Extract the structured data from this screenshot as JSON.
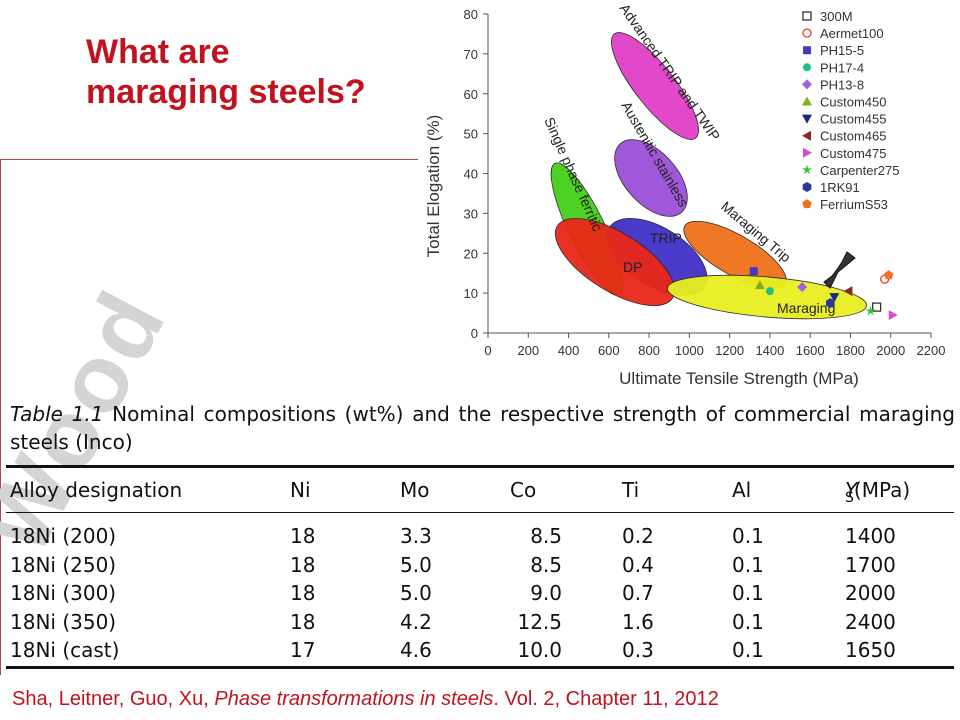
{
  "slide": {
    "title_line1": "What are",
    "title_line2": "maraging steels?",
    "watermark": "Wood",
    "citation_authors": "Sha, Leitner, Guo, Xu, ",
    "citation_book": "Phase transformations in steels",
    "citation_rest": ". Vol. 2, Chapter 11, 2012"
  },
  "chart_data": {
    "type": "scatter",
    "xlabel": "Ultimate Tensile Strength (MPa)",
    "ylabel": "Total Elogation (%)",
    "xlim": [
      0,
      2200
    ],
    "ylim": [
      0,
      80
    ],
    "xticks": [
      0,
      200,
      400,
      600,
      800,
      1000,
      1200,
      1400,
      1600,
      1800,
      2000,
      2200
    ],
    "yticks": [
      0,
      10,
      20,
      30,
      40,
      50,
      60,
      70,
      80
    ],
    "grid": false,
    "legend_position": "top-right",
    "regions": [
      {
        "label": "Advanced TRIP and TWIP",
        "color": "#e040c8"
      },
      {
        "label": "Austenitic stainless",
        "color": "#9a50d8"
      },
      {
        "label": "Single phase ferritic",
        "color": "#44d018"
      },
      {
        "label": "TRIP",
        "color": "#4030c8"
      },
      {
        "label": "DP",
        "color": "#e82818"
      },
      {
        "label": "Maraging Trip",
        "color": "#f07018"
      },
      {
        "label": "Maraging",
        "color": "#e8f020"
      }
    ],
    "series": [
      {
        "name": "300M",
        "marker": "square-open",
        "color": "#333333",
        "x": [
          1930
        ],
        "y": [
          6.5
        ]
      },
      {
        "name": "Aermet100",
        "marker": "circle-open",
        "color": "#e84020",
        "x": [
          1970
        ],
        "y": [
          13.5
        ]
      },
      {
        "name": "PH15-5",
        "marker": "square",
        "color": "#4838c0",
        "x": [
          1320
        ],
        "y": [
          15.5
        ]
      },
      {
        "name": "PH17-4",
        "marker": "circle",
        "color": "#20c080",
        "x": [
          1400
        ],
        "y": [
          10.5
        ]
      },
      {
        "name": "PH13-8",
        "marker": "diamond",
        "color": "#a060e0",
        "x": [
          1560
        ],
        "y": [
          11.5
        ]
      },
      {
        "name": "Custom450",
        "marker": "triangle-up",
        "color": "#80b020",
        "x": [
          1350
        ],
        "y": [
          12
        ]
      },
      {
        "name": "Custom455",
        "marker": "triangle-down",
        "color": "#1a2880",
        "x": [
          1720
        ],
        "y": [
          9
        ]
      },
      {
        "name": "Custom465",
        "marker": "triangle-left",
        "color": "#8b2a1a",
        "x": [
          1790
        ],
        "y": [
          10.5
        ]
      },
      {
        "name": "Custom475",
        "marker": "triangle-right",
        "color": "#d050d0",
        "x": [
          2010
        ],
        "y": [
          4.5
        ]
      },
      {
        "name": "Carpenter275",
        "marker": "star",
        "color": "#30c030",
        "x": [
          1900
        ],
        "y": [
          5.5
        ]
      },
      {
        "name": "1RK91",
        "marker": "hexagon",
        "color": "#2838a0",
        "x": [
          1700
        ],
        "y": [
          7.5
        ]
      },
      {
        "name": "FerriumS53",
        "marker": "pentagon",
        "color": "#f07020",
        "x": [
          1990
        ],
        "y": [
          14.5
        ]
      }
    ]
  },
  "table": {
    "caption_label": "Table 1.1",
    "caption_text": " Nominal compositions (wt%) and the respective strength of commercial maraging steels (Inco)",
    "headers": [
      "Alloy designation",
      "Ni",
      "Mo",
      "Co",
      "Ti",
      "Al"
    ],
    "ys_symbol": "Y",
    "ys_sub": "S",
    "ys_unit": "(MPa)",
    "rows": [
      [
        "18Ni (200)",
        "18",
        "3.3",
        "8.5",
        "0.2",
        "0.1",
        "1400"
      ],
      [
        "18Ni (250)",
        "18",
        "5.0",
        "8.5",
        "0.4",
        "0.1",
        "1700"
      ],
      [
        "18Ni (300)",
        "18",
        "5.0",
        "9.0",
        "0.7",
        "0.1",
        "2000"
      ],
      [
        "18Ni (350)",
        "18",
        "4.2",
        "12.5",
        "1.6",
        "0.1",
        "2400"
      ],
      [
        "18Ni (cast)",
        "17",
        "4.6",
        "10.0",
        "0.3",
        "0.1",
        "1650"
      ]
    ]
  }
}
